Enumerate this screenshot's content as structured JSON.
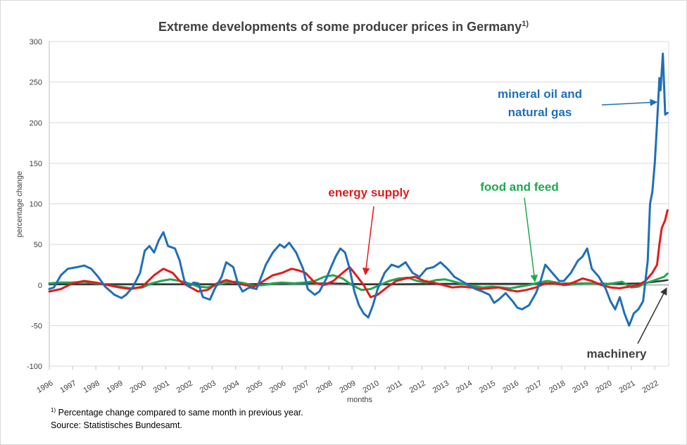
{
  "title": "Extreme developments of some producer prices in Germany",
  "title_sup": "1)",
  "footnote_marker": "1)",
  "footnote_text": "Percentage change compared to same month in previous year.",
  "source": "Source: Statistisches Bundesamt.",
  "annotations": {
    "oil_line1": "mineral oil and",
    "oil_line2": "natural gas",
    "energy": "energy supply",
    "food": "food and feed",
    "machinery": "machinery"
  },
  "chart_data": {
    "type": "line",
    "title": "Extreme developments of some producer prices in Germany",
    "xlabel": "months",
    "ylabel": "percentage change",
    "xlim": [
      1996,
      2022.6
    ],
    "ylim": [
      -100,
      300
    ],
    "yticks": [
      -100,
      -50,
      0,
      50,
      100,
      150,
      200,
      250,
      300
    ],
    "xticks": [
      1996,
      1997,
      1998,
      1999,
      2000,
      2001,
      2002,
      2003,
      2004,
      2005,
      2006,
      2007,
      2008,
      2009,
      2010,
      2011,
      2012,
      2013,
      2014,
      2015,
      2016,
      2017,
      2018,
      2019,
      2020,
      2021,
      2022
    ],
    "grid": "horizontal",
    "legend": "none (inline annotations)",
    "colors": {
      "oil": "#1f6fb8",
      "energy": "#e31a1c",
      "food": "#1ea850",
      "machinery": "#333333"
    },
    "series": [
      {
        "name": "mineral oil and natural gas",
        "color": "#1f6fb8",
        "points": [
          [
            1996,
            -5
          ],
          [
            1996.2,
            -3
          ],
          [
            1996.5,
            12
          ],
          [
            1996.8,
            20
          ],
          [
            1997.2,
            22
          ],
          [
            1997.5,
            24
          ],
          [
            1997.8,
            20
          ],
          [
            1998.1,
            10
          ],
          [
            1998.4,
            -2
          ],
          [
            1998.8,
            -12
          ],
          [
            1999.1,
            -16
          ],
          [
            1999.3,
            -12
          ],
          [
            1999.6,
            -2
          ],
          [
            1999.9,
            15
          ],
          [
            2000.1,
            42
          ],
          [
            2000.3,
            48
          ],
          [
            2000.5,
            40
          ],
          [
            2000.7,
            55
          ],
          [
            2000.9,
            65
          ],
          [
            2001.1,
            48
          ],
          [
            2001.4,
            45
          ],
          [
            2001.6,
            30
          ],
          [
            2001.8,
            5
          ],
          [
            2002.0,
            -2
          ],
          [
            2002.2,
            3
          ],
          [
            2002.4,
            2
          ],
          [
            2002.6,
            -15
          ],
          [
            2002.9,
            -18
          ],
          [
            2003.1,
            -5
          ],
          [
            2003.4,
            10
          ],
          [
            2003.6,
            28
          ],
          [
            2003.9,
            22
          ],
          [
            2004.1,
            2
          ],
          [
            2004.3,
            -8
          ],
          [
            2004.6,
            -3
          ],
          [
            2004.9,
            -5
          ],
          [
            2005.1,
            10
          ],
          [
            2005.3,
            25
          ],
          [
            2005.6,
            40
          ],
          [
            2005.9,
            50
          ],
          [
            2006.1,
            46
          ],
          [
            2006.3,
            52
          ],
          [
            2006.6,
            40
          ],
          [
            2006.9,
            20
          ],
          [
            2007.1,
            -5
          ],
          [
            2007.4,
            -12
          ],
          [
            2007.6,
            -8
          ],
          [
            2007.9,
            8
          ],
          [
            2008.1,
            22
          ],
          [
            2008.3,
            35
          ],
          [
            2008.5,
            45
          ],
          [
            2008.7,
            40
          ],
          [
            2008.9,
            20
          ],
          [
            2009.1,
            -8
          ],
          [
            2009.3,
            -25
          ],
          [
            2009.5,
            -35
          ],
          [
            2009.7,
            -40
          ],
          [
            2009.9,
            -25
          ],
          [
            2010.1,
            -5
          ],
          [
            2010.4,
            15
          ],
          [
            2010.7,
            25
          ],
          [
            2011.0,
            22
          ],
          [
            2011.3,
            28
          ],
          [
            2011.6,
            15
          ],
          [
            2011.9,
            10
          ],
          [
            2012.2,
            20
          ],
          [
            2012.5,
            22
          ],
          [
            2012.8,
            28
          ],
          [
            2013.1,
            20
          ],
          [
            2013.4,
            10
          ],
          [
            2013.7,
            5
          ],
          [
            2014.0,
            0
          ],
          [
            2014.3,
            -5
          ],
          [
            2014.6,
            -8
          ],
          [
            2014.9,
            -12
          ],
          [
            2015.1,
            -22
          ],
          [
            2015.3,
            -18
          ],
          [
            2015.6,
            -10
          ],
          [
            2015.9,
            -20
          ],
          [
            2016.1,
            -28
          ],
          [
            2016.3,
            -30
          ],
          [
            2016.6,
            -25
          ],
          [
            2016.9,
            -10
          ],
          [
            2017.1,
            5
          ],
          [
            2017.3,
            25
          ],
          [
            2017.6,
            15
          ],
          [
            2017.9,
            5
          ],
          [
            2018.1,
            5
          ],
          [
            2018.4,
            15
          ],
          [
            2018.7,
            30
          ],
          [
            2018.9,
            35
          ],
          [
            2019.1,
            45
          ],
          [
            2019.3,
            20
          ],
          [
            2019.6,
            10
          ],
          [
            2019.9,
            -5
          ],
          [
            2020.1,
            -20
          ],
          [
            2020.3,
            -30
          ],
          [
            2020.5,
            -15
          ],
          [
            2020.7,
            -35
          ],
          [
            2020.9,
            -50
          ],
          [
            2021.1,
            -35
          ],
          [
            2021.3,
            -30
          ],
          [
            2021.5,
            -20
          ],
          [
            2021.7,
            30
          ],
          [
            2021.8,
            100
          ],
          [
            2021.9,
            115
          ],
          [
            2022.0,
            150
          ],
          [
            2022.1,
            200
          ],
          [
            2022.2,
            255
          ],
          [
            2022.25,
            240
          ],
          [
            2022.35,
            285
          ],
          [
            2022.45,
            210
          ],
          [
            2022.55,
            212
          ]
        ]
      },
      {
        "name": "energy supply",
        "color": "#e31a1c",
        "points": [
          [
            1996,
            -8
          ],
          [
            1996.5,
            -5
          ],
          [
            1997.0,
            2
          ],
          [
            1997.5,
            5
          ],
          [
            1998.0,
            3
          ],
          [
            1998.5,
            0
          ],
          [
            1999.0,
            -3
          ],
          [
            1999.5,
            -5
          ],
          [
            2000.0,
            -2
          ],
          [
            2000.5,
            12
          ],
          [
            2000.9,
            20
          ],
          [
            2001.3,
            15
          ],
          [
            2001.6,
            5
          ],
          [
            2002.0,
            -2
          ],
          [
            2002.4,
            -8
          ],
          [
            2002.8,
            -6
          ],
          [
            2003.2,
            2
          ],
          [
            2003.6,
            6
          ],
          [
            2004.0,
            3
          ],
          [
            2004.4,
            0
          ],
          [
            2004.8,
            -2
          ],
          [
            2005.2,
            5
          ],
          [
            2005.6,
            12
          ],
          [
            2006.0,
            15
          ],
          [
            2006.4,
            20
          ],
          [
            2006.7,
            18
          ],
          [
            2007.0,
            15
          ],
          [
            2007.4,
            3
          ],
          [
            2007.8,
            0
          ],
          [
            2008.2,
            5
          ],
          [
            2008.6,
            15
          ],
          [
            2008.9,
            22
          ],
          [
            2009.1,
            15
          ],
          [
            2009.5,
            0
          ],
          [
            2009.8,
            -15
          ],
          [
            2010.1,
            -12
          ],
          [
            2010.5,
            -3
          ],
          [
            2010.9,
            5
          ],
          [
            2011.3,
            8
          ],
          [
            2011.7,
            10
          ],
          [
            2012.1,
            5
          ],
          [
            2012.5,
            3
          ],
          [
            2012.9,
            0
          ],
          [
            2013.3,
            -3
          ],
          [
            2013.7,
            -2
          ],
          [
            2014.1,
            -3
          ],
          [
            2014.5,
            -5
          ],
          [
            2014.9,
            -4
          ],
          [
            2015.3,
            -3
          ],
          [
            2015.7,
            -6
          ],
          [
            2016.1,
            -8
          ],
          [
            2016.5,
            -6
          ],
          [
            2016.9,
            -3
          ],
          [
            2017.3,
            2
          ],
          [
            2017.7,
            2
          ],
          [
            2018.1,
            0
          ],
          [
            2018.5,
            3
          ],
          [
            2018.9,
            8
          ],
          [
            2019.3,
            5
          ],
          [
            2019.7,
            0
          ],
          [
            2020.1,
            -3
          ],
          [
            2020.5,
            -4
          ],
          [
            2020.9,
            -2
          ],
          [
            2021.3,
            0
          ],
          [
            2021.6,
            5
          ],
          [
            2021.9,
            15
          ],
          [
            2022.1,
            25
          ],
          [
            2022.2,
            50
          ],
          [
            2022.3,
            70
          ],
          [
            2022.45,
            80
          ],
          [
            2022.55,
            92
          ]
        ]
      },
      {
        "name": "food and feed",
        "color": "#1ea850",
        "points": [
          [
            1996,
            2
          ],
          [
            1996.5,
            3
          ],
          [
            1997.0,
            3
          ],
          [
            1997.5,
            4
          ],
          [
            1998.0,
            2
          ],
          [
            1998.5,
            0
          ],
          [
            1999.0,
            -2
          ],
          [
            1999.5,
            -4
          ],
          [
            2000.0,
            -3
          ],
          [
            2000.4,
            2
          ],
          [
            2000.8,
            5
          ],
          [
            2001.2,
            7
          ],
          [
            2001.6,
            5
          ],
          [
            2002.0,
            2
          ],
          [
            2002.4,
            -2
          ],
          [
            2002.8,
            -3
          ],
          [
            2003.2,
            0
          ],
          [
            2003.6,
            3
          ],
          [
            2004.0,
            4
          ],
          [
            2004.4,
            2
          ],
          [
            2004.8,
            -1
          ],
          [
            2005.2,
            0
          ],
          [
            2005.6,
            2
          ],
          [
            2006.0,
            3
          ],
          [
            2006.5,
            2
          ],
          [
            2007.0,
            3
          ],
          [
            2007.4,
            5
          ],
          [
            2007.8,
            10
          ],
          [
            2008.2,
            12
          ],
          [
            2008.6,
            8
          ],
          [
            2009.0,
            0
          ],
          [
            2009.4,
            -6
          ],
          [
            2009.8,
            -5
          ],
          [
            2010.2,
            0
          ],
          [
            2010.6,
            5
          ],
          [
            2011.0,
            8
          ],
          [
            2011.4,
            9
          ],
          [
            2011.8,
            5
          ],
          [
            2012.2,
            3
          ],
          [
            2012.6,
            6
          ],
          [
            2013.0,
            7
          ],
          [
            2013.4,
            4
          ],
          [
            2013.8,
            1
          ],
          [
            2014.2,
            -1
          ],
          [
            2014.6,
            -3
          ],
          [
            2015.0,
            -2
          ],
          [
            2015.4,
            -3
          ],
          [
            2015.8,
            -4
          ],
          [
            2016.2,
            -2
          ],
          [
            2016.6,
            0
          ],
          [
            2017.0,
            3
          ],
          [
            2017.4,
            5
          ],
          [
            2017.8,
            3
          ],
          [
            2018.2,
            0
          ],
          [
            2018.6,
            1
          ],
          [
            2019.0,
            2
          ],
          [
            2019.4,
            2
          ],
          [
            2019.8,
            1
          ],
          [
            2020.2,
            2
          ],
          [
            2020.6,
            4
          ],
          [
            2021.0,
            -3
          ],
          [
            2021.3,
            -2
          ],
          [
            2021.6,
            2
          ],
          [
            2021.9,
            5
          ],
          [
            2022.2,
            8
          ],
          [
            2022.4,
            10
          ],
          [
            2022.55,
            14
          ]
        ]
      },
      {
        "name": "machinery",
        "color": "#333333",
        "points": [
          [
            1996,
            1
          ],
          [
            1998,
            1
          ],
          [
            2000,
            1
          ],
          [
            2002,
            1
          ],
          [
            2004,
            1
          ],
          [
            2006,
            1.5
          ],
          [
            2008,
            2
          ],
          [
            2009.5,
            1
          ],
          [
            2011,
            1
          ],
          [
            2013,
            1.5
          ],
          [
            2015,
            1.5
          ],
          [
            2017,
            1.5
          ],
          [
            2019,
            2
          ],
          [
            2020.5,
            1.5
          ],
          [
            2021.5,
            2
          ],
          [
            2022.0,
            4
          ],
          [
            2022.3,
            5
          ],
          [
            2022.55,
            6
          ]
        ]
      }
    ]
  }
}
